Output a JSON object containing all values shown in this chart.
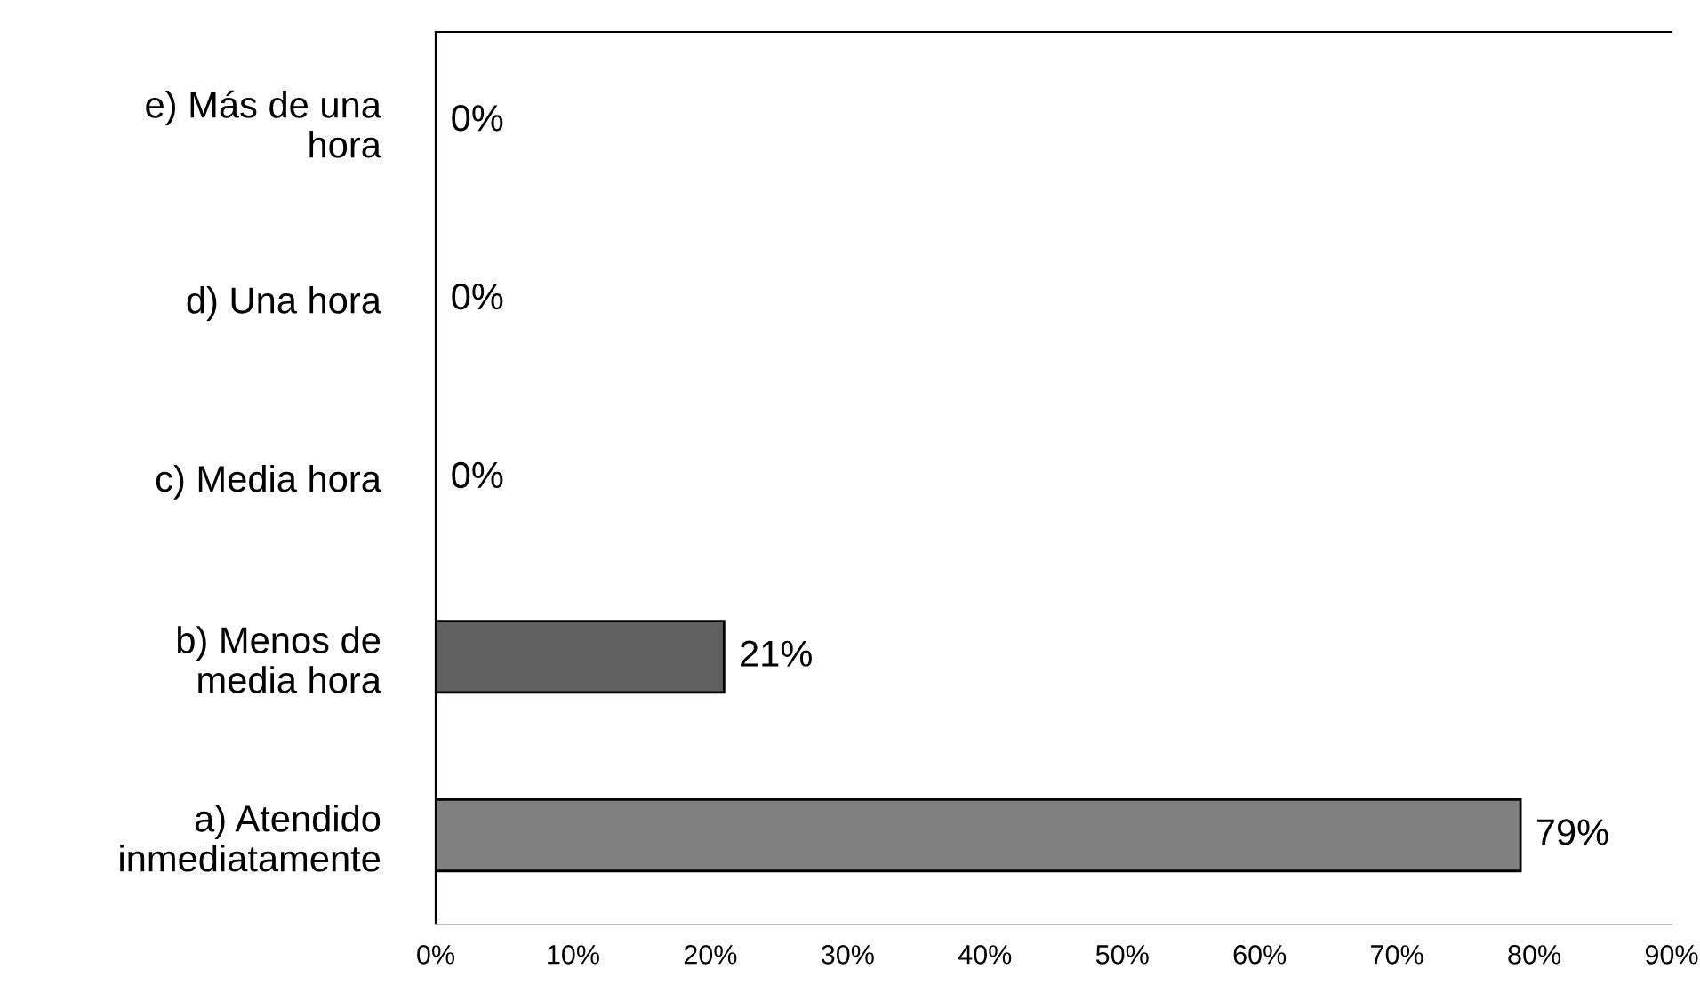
{
  "chart_data": {
    "type": "bar",
    "orientation": "horizontal",
    "categories": [
      "e) Más de una\nhora",
      "d) Una hora",
      "c) Media hora",
      "b) Menos de\nmedia hora",
      "a) Atendido\ninmediatamente"
    ],
    "values": [
      0,
      0,
      0,
      21,
      79
    ],
    "colors": [
      "#808080",
      "#808080",
      "#808080",
      "#606060",
      "#808080"
    ],
    "value_labels": [
      "0%",
      "0%",
      "0%",
      "21%",
      "79%"
    ],
    "xlim": [
      0,
      90
    ],
    "xticks": [
      {
        "value": 0,
        "label": "0%"
      },
      {
        "value": 10,
        "label": "10%"
      },
      {
        "value": 20,
        "label": "20%"
      },
      {
        "value": 30,
        "label": "30%"
      },
      {
        "value": 40,
        "label": "40%"
      },
      {
        "value": 50,
        "label": "50%"
      },
      {
        "value": 60,
        "label": "60%"
      },
      {
        "value": 70,
        "label": "70%"
      },
      {
        "value": 80,
        "label": "80%"
      },
      {
        "value": 90,
        "label": "90%"
      }
    ],
    "grid": false,
    "legend": false
  }
}
